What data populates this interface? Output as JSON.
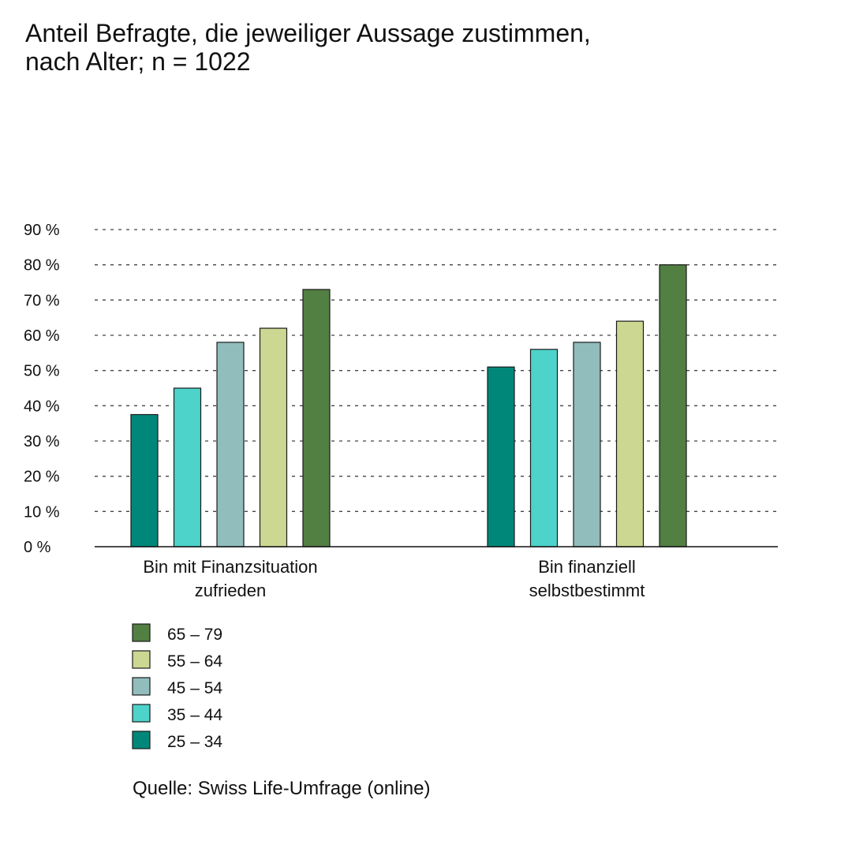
{
  "title_lines": [
    "Anteil Befragte, die jeweiliger Aussage zustimmen,",
    "nach Alter; n = 1022"
  ],
  "source": "Quelle: Swiss Life-Umfrage (online)",
  "chart_data": {
    "type": "bar",
    "title": "Anteil Befragte, die jeweiliger Aussage zustimmen, nach Alter; n = 1022",
    "categories": [
      [
        "Bin mit Finanzsituation",
        "zufrieden"
      ],
      [
        "Bin finanziell",
        "selbstbestimmt"
      ]
    ],
    "series": [
      {
        "name": "25 – 34",
        "color": "#00877a",
        "values": [
          37.5,
          51
        ]
      },
      {
        "name": "35 – 44",
        "color": "#4dd3c9",
        "values": [
          45,
          56
        ]
      },
      {
        "name": "45 – 54",
        "color": "#91bdbd",
        "values": [
          58,
          58
        ]
      },
      {
        "name": "55 – 64",
        "color": "#ccd791",
        "values": [
          62,
          64
        ]
      },
      {
        "name": "65 – 79",
        "color": "#527f42",
        "values": [
          73,
          80
        ]
      }
    ],
    "yticks": [
      "0 %",
      "10 %",
      "20 %",
      "30 %",
      "40 %",
      "50 %",
      "60 %",
      "70 %",
      "80 %",
      "90 %"
    ],
    "ylim": [
      0,
      90
    ],
    "grid": true,
    "legend_placement": "bottom-left",
    "legend_order": [
      "65 – 79",
      "55 – 64",
      "45 – 54",
      "35 – 44",
      "25 – 34"
    ]
  }
}
